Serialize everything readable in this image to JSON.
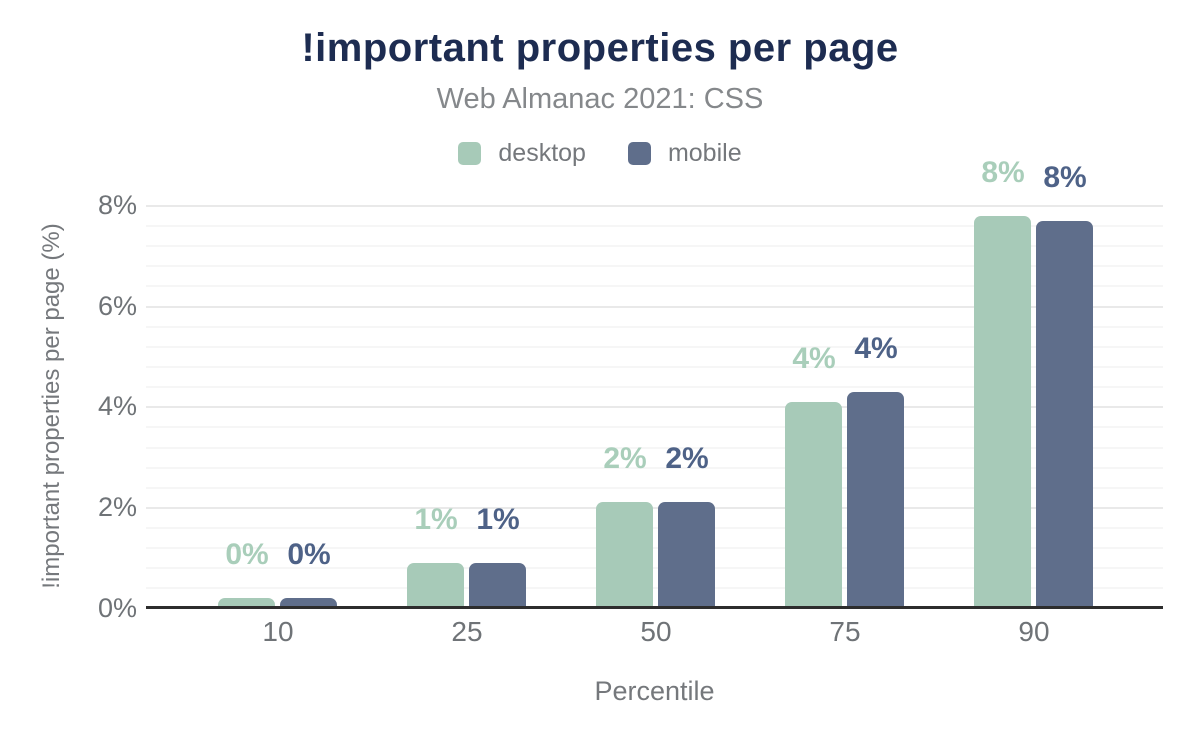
{
  "header": {
    "title": "!important properties per page",
    "subtitle": "Web Almanac 2021: CSS"
  },
  "colors": {
    "title_text": "#1d2c51",
    "subtitle_text": "#85888b",
    "legend_text": "#75787c",
    "tick_text": "#6f7377",
    "axis_line": "#2d2d2d",
    "grid_major": "#e9e9e9",
    "grid_minor": "#f6f6f6",
    "desktop": "#a7cab8",
    "mobile": "#5f6e8b",
    "desktop_label": "#a9ceba",
    "mobile_label": "#4e6287"
  },
  "chart_data": {
    "type": "bar",
    "title": "!important properties per page",
    "subtitle": "Web Almanac 2021: CSS",
    "xlabel": "Percentile",
    "ylabel": "!important properties per page (%)",
    "categories": [
      "10",
      "25",
      "50",
      "75",
      "90"
    ],
    "series": [
      {
        "name": "desktop",
        "color": "#a7cab8",
        "label_color": "#a9ceba",
        "values": [
          0.2,
          0.9,
          2.1,
          4.1,
          7.8
        ],
        "labels": [
          "0%",
          "1%",
          "2%",
          "4%",
          "8%"
        ]
      },
      {
        "name": "mobile",
        "color": "#5f6e8b",
        "label_color": "#4e6287",
        "values": [
          0.2,
          0.9,
          2.1,
          4.3,
          7.7
        ],
        "labels": [
          "0%",
          "1%",
          "2%",
          "4%",
          "8%"
        ]
      }
    ],
    "yticks": [
      {
        "value": 0,
        "label": "0%"
      },
      {
        "value": 2,
        "label": "2%"
      },
      {
        "value": 4,
        "label": "4%"
      },
      {
        "value": 6,
        "label": "6%"
      },
      {
        "value": 8,
        "label": "8%"
      }
    ],
    "ylim": [
      0,
      8
    ],
    "grid": {
      "major_step": 2,
      "minor_step": 0.4
    },
    "legend_position": "top"
  }
}
